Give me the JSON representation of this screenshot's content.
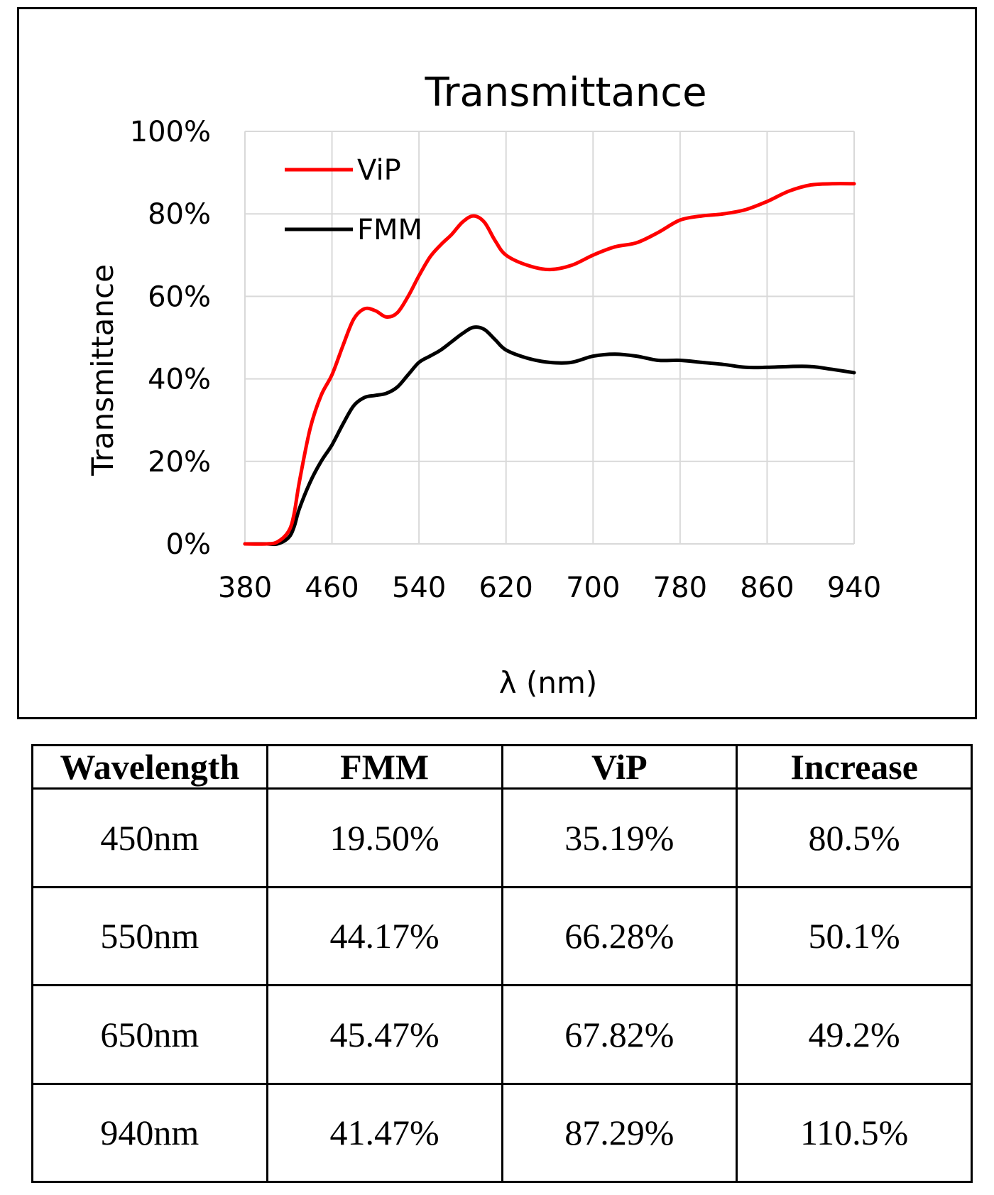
{
  "chart_data": {
    "type": "line",
    "title": "Transmittance",
    "xlabel": "λ (nm)",
    "ylabel": "Transmittance",
    "xlim": [
      380,
      940
    ],
    "ylim": [
      0,
      100
    ],
    "x_ticks": [
      "380",
      "460",
      "540",
      "620",
      "700",
      "780",
      "860",
      "940"
    ],
    "x_tick_values": [
      380,
      460,
      540,
      620,
      700,
      780,
      860,
      940
    ],
    "y_ticks": [
      "0%",
      "20%",
      "40%",
      "60%",
      "80%",
      "100%"
    ],
    "y_tick_values": [
      0,
      20,
      40,
      60,
      80,
      100
    ],
    "grid": true,
    "legend": "top-left",
    "series": [
      {
        "name": "ViP",
        "color": "#ff0000",
        "x": [
          380,
          400,
          410,
          420,
          425,
          430,
          440,
          450,
          460,
          470,
          480,
          490,
          500,
          510,
          520,
          530,
          540,
          550,
          560,
          570,
          580,
          590,
          600,
          610,
          620,
          640,
          660,
          680,
          700,
          720,
          740,
          760,
          780,
          800,
          820,
          840,
          860,
          880,
          900,
          920,
          940
        ],
        "y": [
          0,
          0,
          0.5,
          3,
          7,
          15,
          28,
          36,
          41,
          48,
          54.5,
          57,
          56.5,
          55,
          56,
          60,
          65,
          69.5,
          72.5,
          75,
          78,
          79.5,
          78,
          73.5,
          70,
          67.5,
          66.5,
          67.5,
          70,
          72,
          73,
          75.5,
          78.5,
          79.5,
          80,
          81,
          83,
          85.5,
          87,
          87.3,
          87.3
        ]
      },
      {
        "name": "FMM",
        "color": "#000000",
        "x": [
          380,
          400,
          410,
          420,
          425,
          430,
          440,
          450,
          460,
          470,
          480,
          490,
          500,
          510,
          520,
          530,
          540,
          550,
          560,
          570,
          580,
          590,
          600,
          610,
          620,
          640,
          660,
          680,
          700,
          720,
          740,
          760,
          780,
          800,
          820,
          840,
          860,
          880,
          900,
          920,
          940
        ],
        "y": [
          0,
          0,
          0,
          1.5,
          4,
          8.5,
          15,
          20,
          24,
          29,
          33.5,
          35.5,
          36,
          36.5,
          38,
          41,
          44,
          45.5,
          47,
          49,
          51,
          52.5,
          52,
          49.5,
          47,
          45,
          44,
          44,
          45.5,
          46,
          45.5,
          44.5,
          44.5,
          44,
          43.5,
          42.8,
          42.8,
          43,
          43,
          42.3,
          41.5
        ]
      }
    ]
  },
  "table": {
    "headers": [
      "Wavelength",
      "FMM",
      "ViP",
      "Increase"
    ],
    "rows": [
      [
        "450nm",
        "19.50%",
        "35.19%",
        "80.5%"
      ],
      [
        "550nm",
        "44.17%",
        "66.28%",
        "50.1%"
      ],
      [
        "650nm",
        "45.47%",
        "67.82%",
        "49.2%"
      ],
      [
        "940nm",
        "41.47%",
        "87.29%",
        "110.5%"
      ]
    ]
  }
}
